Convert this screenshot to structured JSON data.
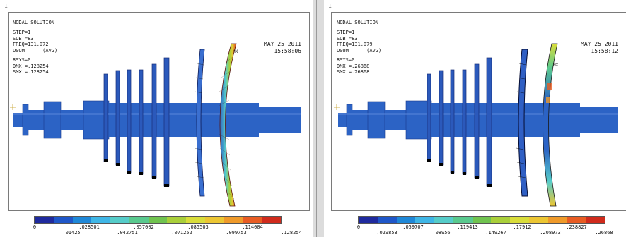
{
  "left": {
    "window_number": "1",
    "title": "NODAL SOLUTION",
    "info": [
      "STEP=1",
      "SUB =83",
      "FREQ=131.072",
      "USUM      (AVG)",
      "RSYS=0",
      "DMX =.128254",
      "SMX =.128254"
    ],
    "date": "MAY 25 2011",
    "time": "15:58:06",
    "max_marker": "MX",
    "legend_top": [
      "0",
      ".028501",
      ".057002",
      ".085503",
      ".114004"
    ],
    "legend_bottom": [
      ".01425",
      ".042751",
      ".071252",
      ".099753",
      ".128254"
    ]
  },
  "right": {
    "window_number": "1",
    "title": "NODAL SOLUTION",
    "info": [
      "STEP=1",
      "SUB =83",
      "FREQ=131.079",
      "USUM      (AVG)",
      "RSYS=0",
      "DMX =.26868",
      "SMX =.26868"
    ],
    "date": "MAY 25 2011",
    "time": "15:58:12",
    "max_marker": "MX",
    "legend_top": [
      "0",
      ".059707",
      ".119413",
      ".17912",
      ".238827"
    ],
    "legend_bottom": [
      ".029853",
      ".08956",
      ".149267",
      ".208973",
      ".26868"
    ]
  },
  "colors": {
    "contour": [
      "#1f2a9e",
      "#1f57c9",
      "#1f88d8",
      "#3fb6e6",
      "#56ccc9",
      "#59c98e",
      "#70c34f",
      "#a9cf3a",
      "#d9dd3a",
      "#ecc633",
      "#ef9a2a",
      "#e85c23",
      "#d02b1c"
    ],
    "rotor": "#2c63c5",
    "rotor_dark": "#1c3a8c"
  }
}
